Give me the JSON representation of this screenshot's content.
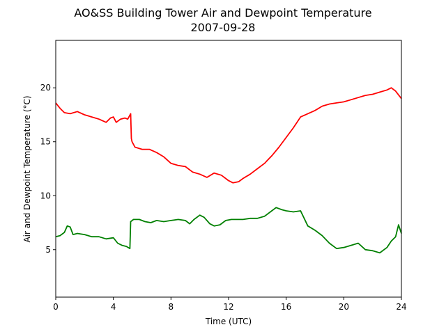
{
  "chart_data": {
    "type": "line",
    "title": "AO&SS Building Tower Air and Dewpoint Temperature",
    "subtitle": "2007-09-28",
    "xlabel": "Time (UTC)",
    "ylabel": "Air and Dewpoint Temperature (°C)",
    "xlim": [
      0,
      24
    ],
    "ylim": [
      0.6,
      24.4
    ],
    "xticks": [
      0,
      4,
      8,
      12,
      16,
      20,
      24
    ],
    "yticks": [
      5,
      10,
      15,
      20
    ],
    "grid": false,
    "legend": "none",
    "series": [
      {
        "color": "#ff0000",
        "x": [
          0.0,
          0.3,
          0.6,
          1.0,
          1.5,
          2.0,
          2.5,
          3.0,
          3.5,
          3.8,
          4.0,
          4.2,
          4.5,
          4.8,
          5.0,
          5.2,
          5.25,
          5.3,
          5.5,
          6.0,
          6.5,
          7.0,
          7.5,
          8.0,
          8.5,
          9.0,
          9.5,
          10.0,
          10.5,
          11.0,
          11.5,
          12.0,
          12.3,
          12.7,
          13.0,
          13.5,
          14.0,
          14.5,
          15.0,
          15.5,
          16.0,
          16.5,
          17.0,
          17.5,
          18.0,
          18.5,
          19.0,
          19.5,
          20.0,
          20.5,
          21.0,
          21.5,
          22.0,
          22.5,
          23.0,
          23.3,
          23.6,
          24.0
        ],
        "y": [
          18.6,
          18.1,
          17.7,
          17.6,
          17.8,
          17.5,
          17.3,
          17.1,
          16.8,
          17.2,
          17.3,
          16.8,
          17.1,
          17.2,
          17.1,
          17.6,
          15.3,
          15.0,
          14.5,
          14.3,
          14.3,
          14.0,
          13.6,
          13.0,
          12.8,
          12.7,
          12.2,
          12.0,
          11.7,
          12.1,
          11.9,
          11.4,
          11.2,
          11.3,
          11.6,
          12.0,
          12.5,
          13.0,
          13.7,
          14.5,
          15.4,
          16.3,
          17.3,
          17.6,
          17.9,
          18.3,
          18.5,
          18.6,
          18.7,
          18.9,
          19.1,
          19.3,
          19.4,
          19.6,
          19.8,
          20.0,
          19.7,
          19.0
        ]
      },
      {
        "color": "#008000",
        "x": [
          0.0,
          0.3,
          0.6,
          0.8,
          1.0,
          1.2,
          1.5,
          2.0,
          2.5,
          3.0,
          3.5,
          4.0,
          4.3,
          4.6,
          4.9,
          5.15,
          5.2,
          5.4,
          5.8,
          6.2,
          6.6,
          7.0,
          7.5,
          8.0,
          8.5,
          9.0,
          9.3,
          9.6,
          10.0,
          10.3,
          10.7,
          11.0,
          11.4,
          11.8,
          12.2,
          12.6,
          13.0,
          13.5,
          14.0,
          14.5,
          15.0,
          15.3,
          15.7,
          16.0,
          16.5,
          17.0,
          17.5,
          18.0,
          18.5,
          19.0,
          19.5,
          20.0,
          20.5,
          21.0,
          21.5,
          22.0,
          22.5,
          23.0,
          23.3,
          23.6,
          23.8,
          24.0
        ],
        "y": [
          6.2,
          6.3,
          6.6,
          7.2,
          7.1,
          6.4,
          6.5,
          6.4,
          6.2,
          6.2,
          6.0,
          6.1,
          5.6,
          5.4,
          5.3,
          5.1,
          7.6,
          7.8,
          7.8,
          7.6,
          7.5,
          7.7,
          7.6,
          7.7,
          7.8,
          7.7,
          7.4,
          7.8,
          8.2,
          8.0,
          7.4,
          7.2,
          7.3,
          7.7,
          7.8,
          7.8,
          7.8,
          7.9,
          7.9,
          8.1,
          8.6,
          8.9,
          8.7,
          8.6,
          8.5,
          8.6,
          7.2,
          6.8,
          6.3,
          5.6,
          5.1,
          5.2,
          5.4,
          5.6,
          5.0,
          4.9,
          4.7,
          5.2,
          5.8,
          6.2,
          7.3,
          6.5
        ]
      }
    ]
  }
}
